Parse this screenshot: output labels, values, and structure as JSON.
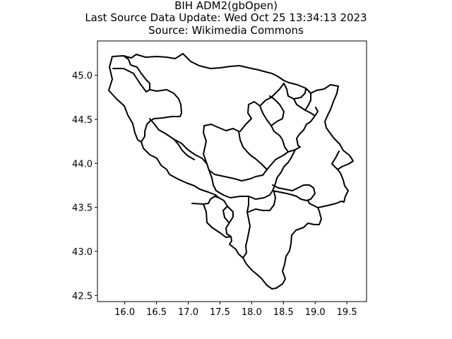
{
  "title": {
    "line1": "BIH ADM2(gbOpen)",
    "line2": "Last Source Data Update: Wed Oct 25 13:34:13 2023",
    "line3": "Source: Wikimedia Commons"
  },
  "axes": {
    "x_ticks": [
      "16.0",
      "16.5",
      "17.0",
      "17.5",
      "18.0",
      "18.5",
      "19.0",
      "19.5"
    ],
    "x_tick_values": [
      16.0,
      16.5,
      17.0,
      17.5,
      18.0,
      18.5,
      19.0,
      19.5
    ],
    "y_ticks": [
      "42.5",
      "43.0",
      "43.5",
      "44.0",
      "44.5",
      "45.0"
    ],
    "y_tick_values": [
      42.5,
      43.0,
      43.5,
      44.0,
      44.5,
      45.0
    ],
    "xlim": [
      15.57,
      19.81
    ],
    "ylim": [
      42.43,
      45.39
    ]
  },
  "colors": {
    "boundary": "#000000",
    "frame": "#000000",
    "background": "#ffffff"
  }
}
